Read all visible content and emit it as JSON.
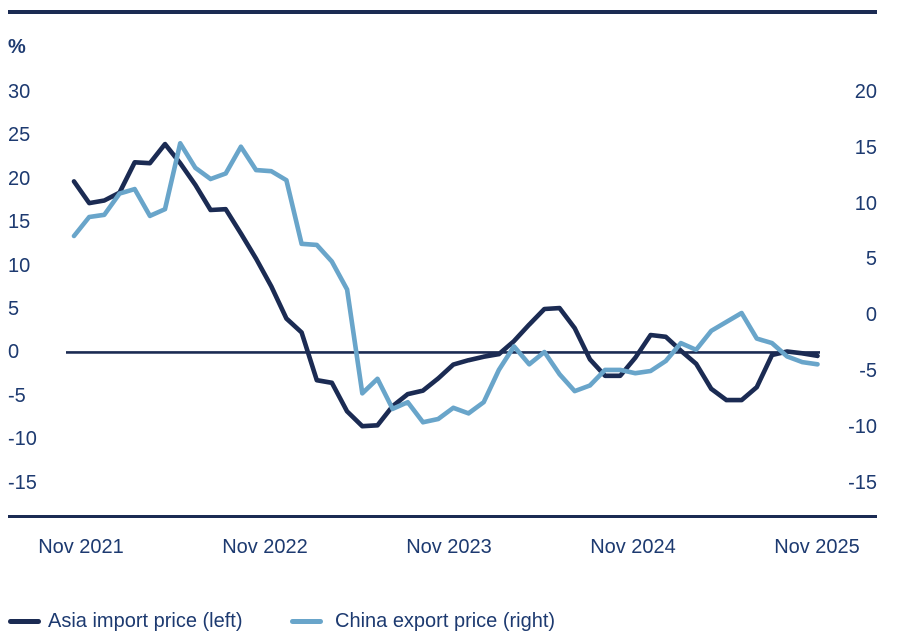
{
  "chart_data": {
    "type": "line",
    "title": "%",
    "axis_color": "#1b2b53",
    "text_color": "#1d3a70",
    "background": "#ffffff",
    "x_labels": [
      "Nov 2021",
      "Nov 2022",
      "Nov 2023",
      "Nov 2024",
      "Nov 2025"
    ],
    "left_axis": {
      "label": "%",
      "min": -15,
      "max": 30,
      "ticks": [
        "30",
        "25",
        "20",
        "15",
        "10",
        "5",
        "0",
        "-5",
        "-10",
        "-15"
      ]
    },
    "right_axis": {
      "min": -15,
      "max": 20,
      "ticks": [
        "20",
        "15",
        "10",
        "5",
        "0",
        "-5",
        "-10",
        "-15"
      ]
    },
    "zero_line_on_left_axis": true,
    "grid": "off",
    "legend_position": "bottom-left",
    "x": [
      "Oct 2021",
      "Nov 2021",
      "Dec 2021",
      "Jan 2022",
      "Feb 2022",
      "Mar 2022",
      "Apr 2022",
      "May 2022",
      "Jun 2022",
      "Jul 2022",
      "Aug 2022",
      "Sep 2022",
      "Oct 2022",
      "Nov 2022",
      "Dec 2022",
      "Jan 2023",
      "Feb 2023",
      "Mar 2023",
      "Apr 2023",
      "May 2023",
      "Jun 2023",
      "Jul 2023",
      "Aug 2023",
      "Sep 2023",
      "Oct 2023",
      "Nov 2023",
      "Dec 2023",
      "Jan 2024",
      "Feb 2024",
      "Mar 2024",
      "Apr 2024",
      "May 2024",
      "Jun 2024",
      "Jul 2024",
      "Aug 2024",
      "Sep 2024",
      "Oct 2024",
      "Nov 2024",
      "Dec 2024",
      "Jan 2025",
      "Feb 2025",
      "Mar 2025",
      "Apr 2025",
      "May 2025",
      "Jun 2025",
      "Jul 2025",
      "Aug 2025",
      "Sep 2025",
      "Oct 2025",
      "Nov 2025"
    ],
    "series": [
      {
        "name": "Asia import price (left)",
        "axis": "left",
        "color": "#1b2b53",
        "values": [
          19.7,
          17.2,
          17.5,
          18.4,
          21.9,
          21.8,
          24.0,
          21.8,
          19.3,
          16.4,
          16.5,
          13.7,
          10.8,
          7.6,
          3.9,
          2.3,
          -3.2,
          -3.5,
          -6.8,
          -8.5,
          -8.4,
          -6.2,
          -4.8,
          -4.4,
          -3.0,
          -1.4,
          -0.9,
          -0.5,
          -0.2,
          1.3,
          3.2,
          5.0,
          5.1,
          2.8,
          -0.8,
          -2.7,
          -2.7,
          -0.6,
          2.0,
          1.8,
          0.2,
          -1.3,
          -4.2,
          -5.5,
          -5.5,
          -4.0,
          -0.3,
          0.1,
          -0.1,
          -0.4
        ]
      },
      {
        "name": "China export price (right)",
        "axis": "right",
        "color": "#69a5ca",
        "values": [
          7.1,
          8.8,
          9.0,
          10.9,
          11.3,
          8.9,
          9.5,
          15.4,
          13.2,
          12.2,
          12.7,
          15.1,
          13.0,
          12.9,
          12.1,
          6.4,
          6.3,
          4.8,
          2.3,
          -7.0,
          -5.7,
          -8.4,
          -7.8,
          -9.6,
          -9.3,
          -8.3,
          -8.8,
          -7.8,
          -4.9,
          -2.8,
          -4.4,
          -3.3,
          -5.3,
          -6.8,
          -6.3,
          -4.9,
          -4.9,
          -5.2,
          -5.0,
          -4.1,
          -2.5,
          -3.1,
          -1.4,
          -0.6,
          0.2,
          -2.1,
          -2.5,
          -3.7,
          -4.2,
          -4.4
        ]
      }
    ]
  },
  "legend": {
    "items": [
      {
        "label": "Asia import price (left)",
        "color": "#1b2b53"
      },
      {
        "label": "China export price (right)",
        "color": "#69a5ca"
      }
    ]
  }
}
